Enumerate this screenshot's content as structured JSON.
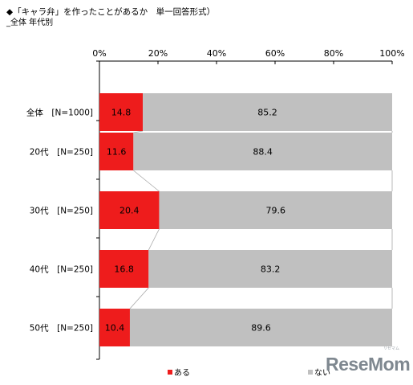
{
  "header": {
    "title": "◆「キャラ弁」を作ったことがあるか　単一回答形式）",
    "subtitle": "_全体 年代別"
  },
  "watermark": {
    "text": "ReseMom",
    "small_text": "リセマム"
  },
  "colors": {
    "aru": "#ee1c1c",
    "nai": "#c0c0c0",
    "connector": "#a8a8a8"
  },
  "chart_data": {
    "type": "bar",
    "orientation": "horizontal",
    "stacked": true,
    "title": "「キャラ弁」を作ったことがあるか　単一回答形式）",
    "subtitle": "_全体 年代別",
    "categories": [
      "全体　[N=1000]",
      "20代　[N=250]",
      "30代　[N=250]",
      "40代　[N=250]",
      "50代　[N=250]"
    ],
    "series": [
      {
        "name": "ある",
        "values": [
          14.8,
          11.6,
          20.4,
          16.8,
          10.4
        ]
      },
      {
        "name": "ない",
        "values": [
          85.2,
          88.4,
          79.6,
          83.2,
          89.6
        ]
      }
    ],
    "xticks": [
      "0%",
      "20%",
      "40%",
      "60%",
      "80%",
      "100%"
    ],
    "xlim": [
      0,
      100
    ],
    "xaxis_position": "top",
    "grid": false,
    "legend": {
      "position": "bottom",
      "entries": [
        "ある",
        "ない"
      ]
    },
    "connector_lines": true
  }
}
